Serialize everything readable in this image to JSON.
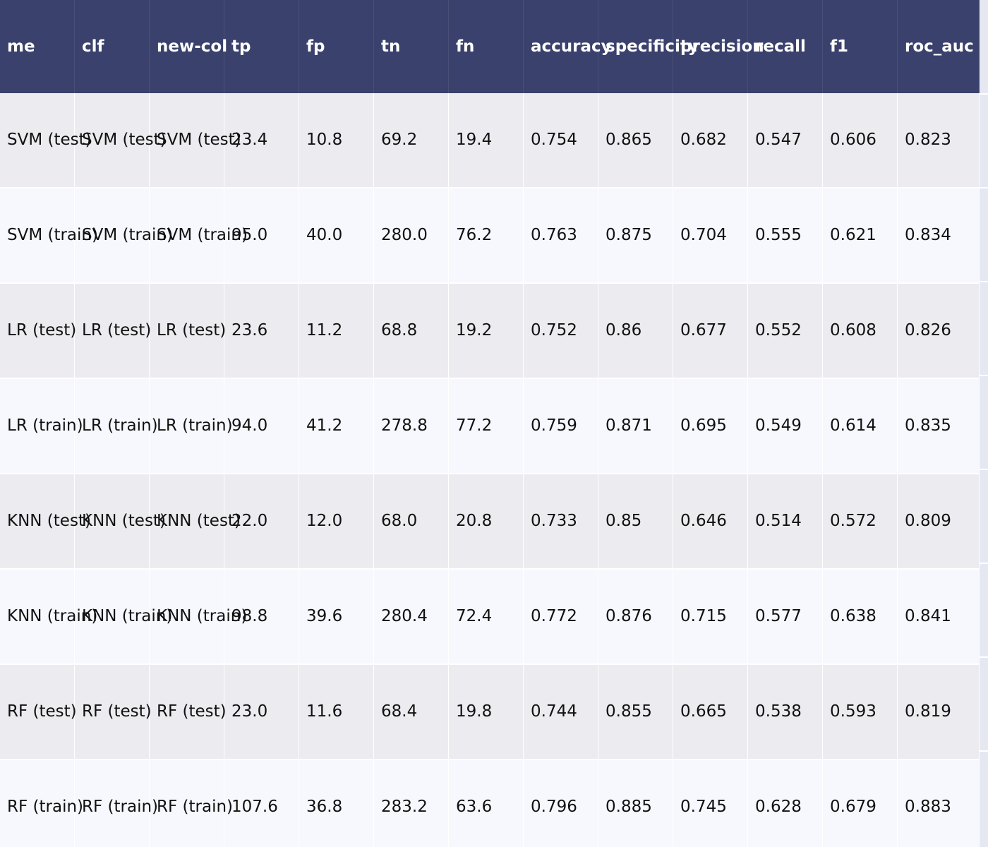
{
  "table": {
    "columns": [
      "me",
      "clf",
      "new-col",
      "tp",
      "fp",
      "tn",
      "fn",
      "accuracy",
      "specificity",
      "precision",
      "recall",
      "f1",
      "roc_auc"
    ],
    "rows": [
      [
        "SVM (test)",
        "SVM (test)",
        "SVM (test)",
        "23.4",
        "10.8",
        "69.2",
        "19.4",
        "0.754",
        "0.865",
        "0.682",
        "0.547",
        "0.606",
        "0.823"
      ],
      [
        "SVM (train)",
        "SVM (train)",
        "SVM (train)",
        "95.0",
        "40.0",
        "280.0",
        "76.2",
        "0.763",
        "0.875",
        "0.704",
        "0.555",
        "0.621",
        "0.834"
      ],
      [
        "LR (test)",
        "LR (test)",
        "LR (test)",
        "23.6",
        "11.2",
        "68.8",
        "19.2",
        "0.752",
        "0.86",
        "0.677",
        "0.552",
        "0.608",
        "0.826"
      ],
      [
        "LR (train)",
        "LR (train)",
        "LR (train)",
        "94.0",
        "41.2",
        "278.8",
        "77.2",
        "0.759",
        "0.871",
        "0.695",
        "0.549",
        "0.614",
        "0.835"
      ],
      [
        "KNN (test)",
        "KNN (test)",
        "KNN (test)",
        "22.0",
        "12.0",
        "68.0",
        "20.8",
        "0.733",
        "0.85",
        "0.646",
        "0.514",
        "0.572",
        "0.809"
      ],
      [
        "KNN (train)",
        "KNN (train)",
        "KNN (train)",
        "98.8",
        "39.6",
        "280.4",
        "72.4",
        "0.772",
        "0.876",
        "0.715",
        "0.577",
        "0.638",
        "0.841"
      ],
      [
        "RF (test)",
        "RF (test)",
        "RF (test)",
        "23.0",
        "11.6",
        "68.4",
        "19.8",
        "0.744",
        "0.855",
        "0.665",
        "0.538",
        "0.593",
        "0.819"
      ],
      [
        "RF (train)",
        "RF (train)",
        "RF (train)",
        "107.6",
        "36.8",
        "283.2",
        "63.6",
        "0.796",
        "0.885",
        "0.745",
        "0.628",
        "0.679",
        "0.883"
      ]
    ]
  },
  "colors": {
    "header_bg": "#3a416c",
    "header_text": "#ffffff",
    "row_odd": "#ececf0",
    "row_even": "#f7f8fd"
  }
}
